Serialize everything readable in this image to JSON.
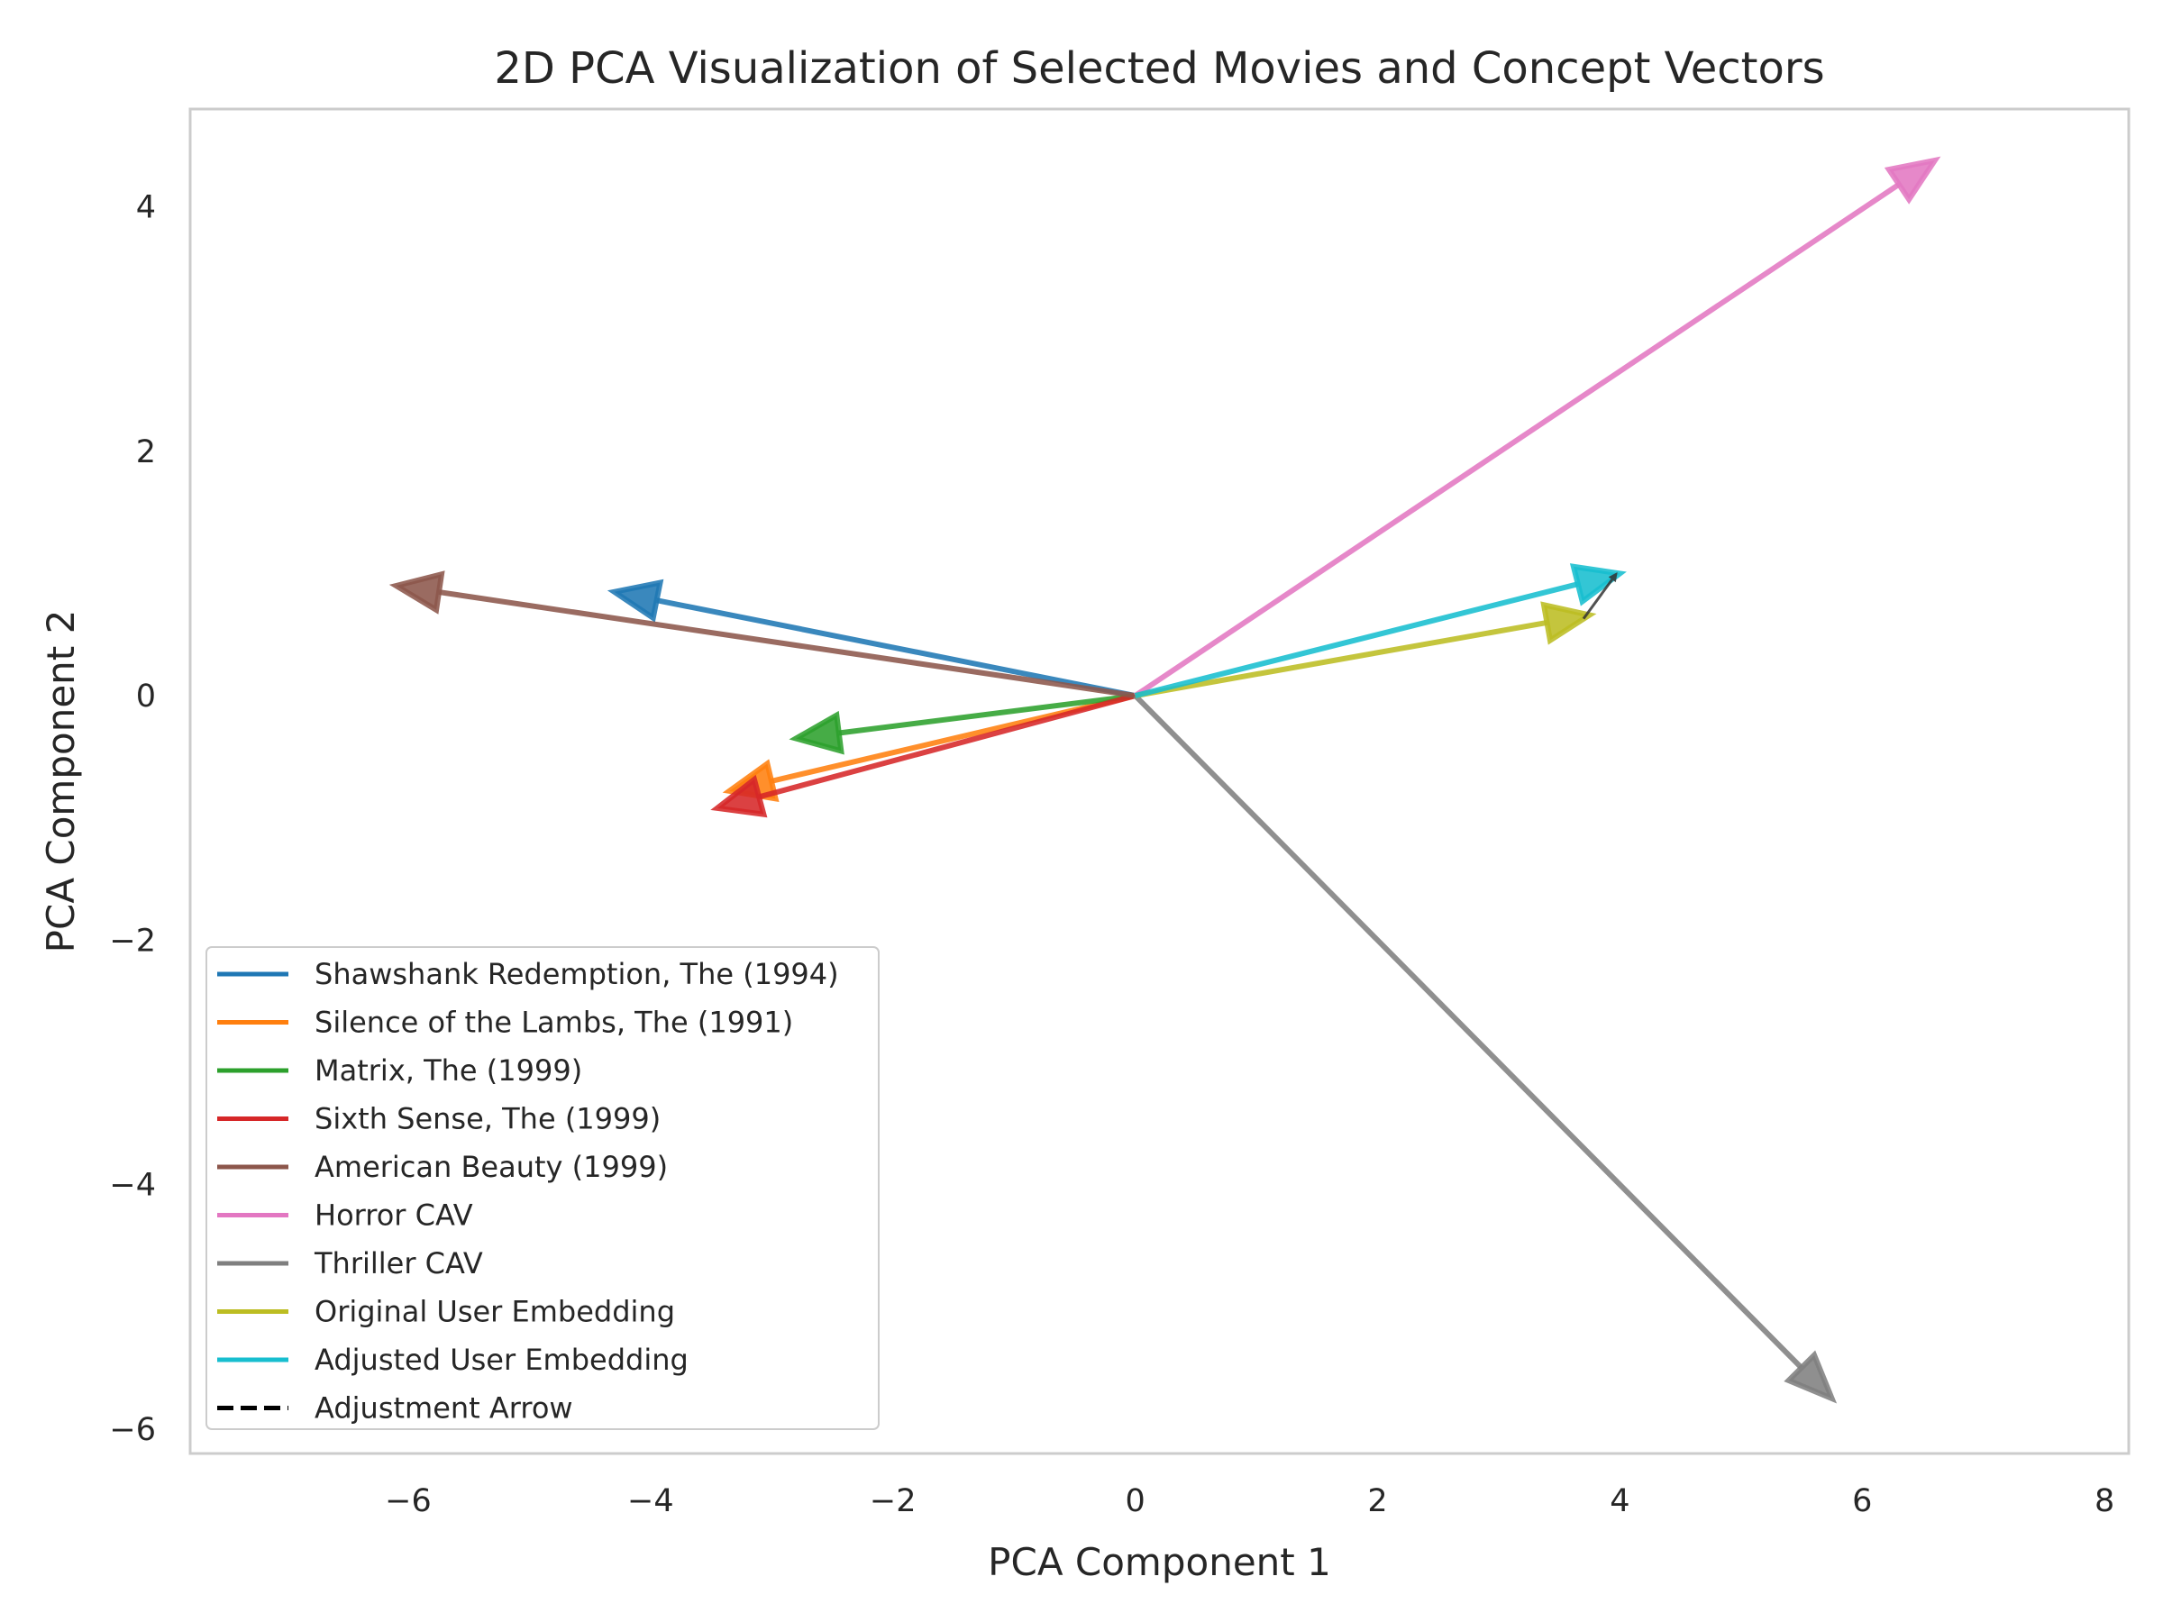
{
  "chart_data": {
    "type": "vector",
    "title": "2D PCA Visualization of Selected Movies and Concept Vectors",
    "xlabel": "PCA Component 1",
    "ylabel": "PCA Component 2",
    "xlim": [
      -7.8,
      8.2
    ],
    "ylim": [
      -6.2,
      4.8
    ],
    "x_ticks": [
      -6,
      -4,
      -2,
      0,
      2,
      4,
      6,
      8
    ],
    "y_ticks": [
      -6,
      -4,
      -2,
      0,
      2,
      4
    ],
    "x_tick_labels": [
      "−6",
      "−4",
      "−2",
      "0",
      "2",
      "4",
      "6",
      "8"
    ],
    "y_tick_labels": [
      "−6",
      "−4",
      "−2",
      "0",
      "2",
      "4"
    ],
    "grid": true,
    "legend_position": "lower-left",
    "series": [
      {
        "name": "Shawshank Redemption, The (1994)",
        "color": "#1f77b4",
        "start": [
          0,
          0
        ],
        "end": [
          -4.3,
          0.85
        ]
      },
      {
        "name": "Silence of the Lambs, The (1991)",
        "color": "#ff7f0e",
        "start": [
          0,
          0
        ],
        "end": [
          -3.35,
          -0.78
        ]
      },
      {
        "name": "Matrix, The (1999)",
        "color": "#2ca02c",
        "start": [
          0,
          0
        ],
        "end": [
          -2.8,
          -0.35
        ]
      },
      {
        "name": "Sixth Sense, The (1999)",
        "color": "#d62728",
        "start": [
          0,
          0
        ],
        "end": [
          -3.45,
          -0.92
        ]
      },
      {
        "name": "American Beauty (1999)",
        "color": "#8c564b",
        "start": [
          0,
          0
        ],
        "end": [
          -6.1,
          0.9
        ]
      },
      {
        "name": "Horror CAV",
        "color": "#e377c2",
        "start": [
          0,
          0
        ],
        "end": [
          6.6,
          4.38
        ]
      },
      {
        "name": "Thriller CAV",
        "color": "#7f7f7f",
        "start": [
          0,
          0
        ],
        "end": [
          5.75,
          -5.75
        ]
      },
      {
        "name": "Original User Embedding",
        "color": "#bcbd22",
        "start": [
          0,
          0
        ],
        "end": [
          3.75,
          0.66
        ]
      },
      {
        "name": "Adjusted User Embedding",
        "color": "#17becf",
        "start": [
          0,
          0
        ],
        "end": [
          4.0,
          1.0
        ]
      },
      {
        "name": "Adjustment Arrow",
        "color": "#000000",
        "start": [
          3.7,
          0.63
        ],
        "end": [
          3.98,
          1.01
        ],
        "dashed": true
      }
    ]
  }
}
